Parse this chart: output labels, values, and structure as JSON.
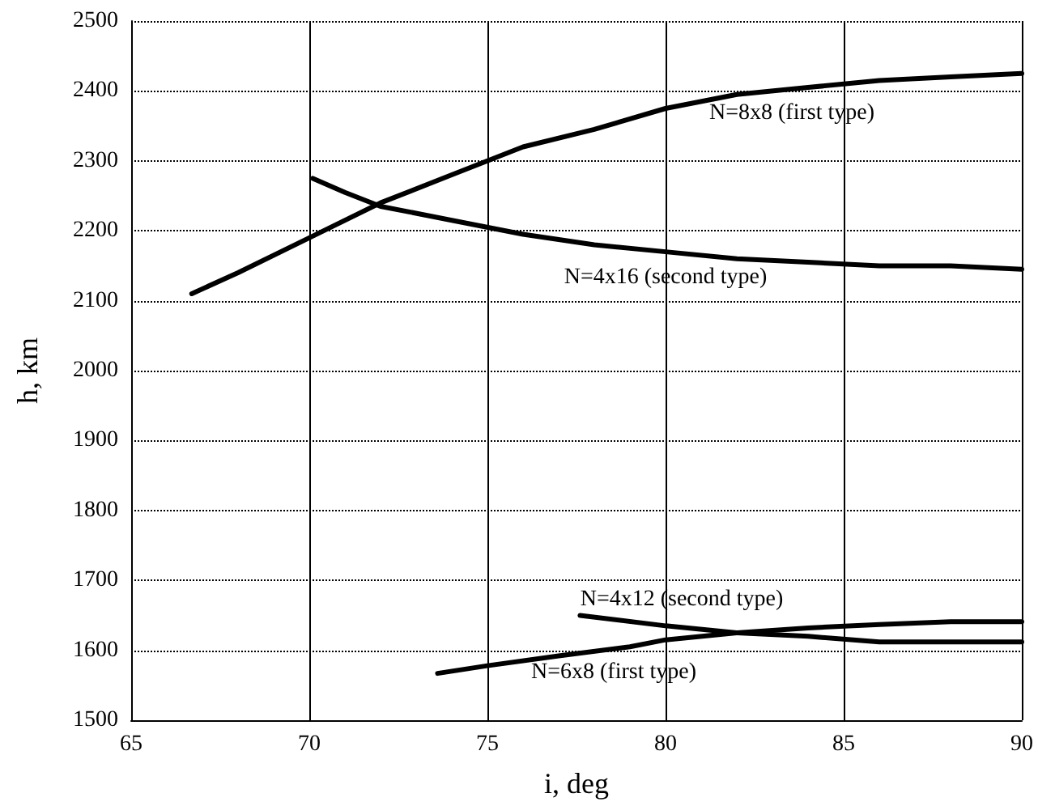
{
  "chart_data": {
    "type": "line",
    "xlabel": "i, deg",
    "ylabel": "h, km",
    "xlim": [
      65,
      90
    ],
    "xticks": [
      65,
      70,
      75,
      80,
      85,
      90
    ],
    "ylim": [
      1500,
      2500
    ],
    "yticks": [
      1500,
      1600,
      1700,
      1800,
      1900,
      2000,
      2100,
      2200,
      2300,
      2400,
      2500
    ],
    "grid": true,
    "marker": "none",
    "line_style": "solid",
    "series": [
      {
        "name": "N=8x8 (first type)",
        "color": "#000000",
        "x": [
          66.7,
          68,
          70,
          72,
          74,
          76,
          78,
          80,
          82,
          84,
          86,
          88,
          90
        ],
        "values": [
          2110,
          2140,
          2190,
          2240,
          2280,
          2320,
          2345,
          2375,
          2395,
          2405,
          2415,
          2420,
          2425
        ]
      },
      {
        "name": "N=4x16 (second type)",
        "color": "#000000",
        "x": [
          70.1,
          71,
          72,
          74,
          76,
          78,
          80,
          82,
          84,
          86,
          88,
          90
        ],
        "values": [
          2275,
          2255,
          2235,
          2215,
          2195,
          2180,
          2170,
          2160,
          2155,
          2150,
          2150,
          2145
        ]
      },
      {
        "name": "N=4x12 (second type)",
        "color": "#000000",
        "x": [
          77.6,
          80,
          82,
          84,
          86,
          88,
          90
        ],
        "values": [
          1650,
          1635,
          1625,
          1620,
          1612,
          1612,
          1612
        ]
      },
      {
        "name": "N=6x8 (first type)",
        "color": "#000000",
        "x": [
          73.6,
          75,
          77,
          79,
          80,
          82,
          84,
          86,
          88,
          90
        ],
        "values": [
          1567,
          1578,
          1592,
          1605,
          1615,
          1625,
          1632,
          1637,
          1641,
          1641
        ]
      }
    ]
  }
}
